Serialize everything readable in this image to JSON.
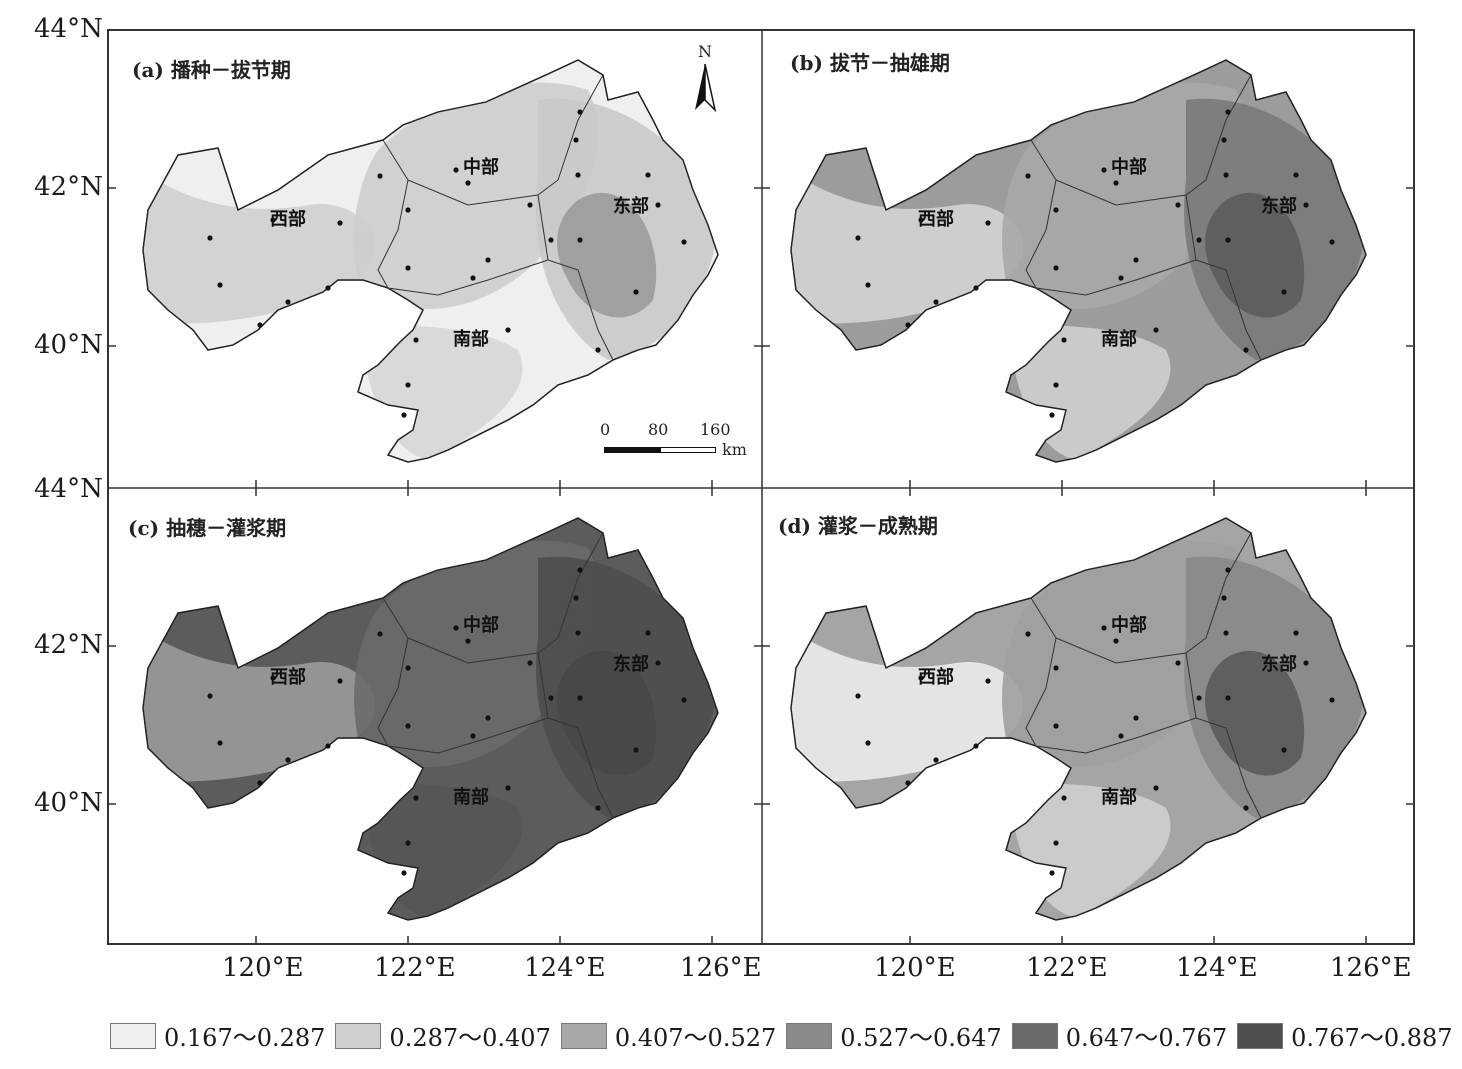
{
  "panels": [
    {
      "title": "(a) 播种－拔节期",
      "region_labels": {
        "west": "西部",
        "central": "中部",
        "east": "东部",
        "south": "南部"
      },
      "zone_fills": {
        "base": "#efefef",
        "west_patch": "#cfcfcf",
        "central": "#cdcdcd",
        "east": "#c9c9c9",
        "core": "#9b9b9b",
        "south": "#d6d6d6"
      }
    },
    {
      "title": "(b) 拔节－抽雄期",
      "region_labels": {
        "west": "西部",
        "central": "中部",
        "east": "东部",
        "south": "南部"
      },
      "zone_fills": {
        "base": "#9c9c9c",
        "west_patch": "#d4d4d4",
        "central": "#a9a9a9",
        "east": "#7a7a7a",
        "core": "#5c5c5c",
        "south": "#cfcfcf"
      }
    },
    {
      "title": "(c) 抽穗－灌浆期",
      "region_labels": {
        "west": "西部",
        "central": "中部",
        "east": "东部",
        "south": "南部"
      },
      "zone_fills": {
        "base": "#5c5c5c",
        "west_patch": "#9a9a9a",
        "central": "#6a6a6a",
        "east": "#4e4e4e",
        "core": "#474747",
        "south": "#555555"
      }
    },
    {
      "title": "(d) 灌浆－成熟期",
      "region_labels": {
        "west": "西部",
        "central": "中部",
        "east": "东部",
        "south": "南部"
      },
      "zone_fills": {
        "base": "#a5a5a5",
        "west_patch": "#ebebeb",
        "central": "#a0a0a0",
        "east": "#888888",
        "core": "#5a5a5a",
        "south": "#cfcfcf"
      }
    }
  ],
  "lat_labels": [
    "44°N",
    "42°N",
    "40°N",
    "44°N",
    "42°N",
    "40°N"
  ],
  "lon_labels": [
    "120°E",
    "122°E",
    "124°E",
    "126°E",
    "120°E",
    "122°E",
    "124°E",
    "126°E"
  ],
  "north_arrow": "N",
  "scale_bar": {
    "ticks": [
      "0",
      "80",
      "160"
    ],
    "unit": "km"
  },
  "legend": [
    {
      "label": "0.167～0.287",
      "color": "#efefef"
    },
    {
      "label": "0.287～0.407",
      "color": "#cfcfcf"
    },
    {
      "label": "0.407～0.527",
      "color": "#a8a8a8"
    },
    {
      "label": "0.527～0.647",
      "color": "#8a8a8a"
    },
    {
      "label": "0.647～0.767",
      "color": "#6a6a6a"
    },
    {
      "label": "0.767～0.887",
      "color": "#4e4e4e"
    }
  ]
}
